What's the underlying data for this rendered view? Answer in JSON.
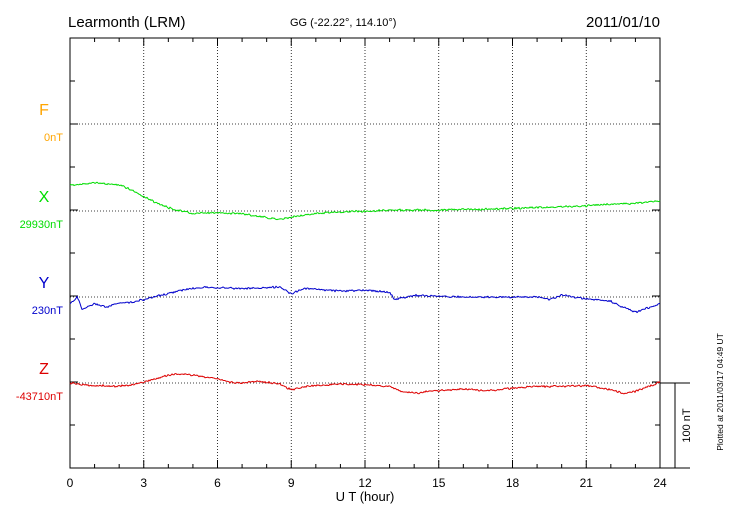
{
  "header": {
    "station": "Learmonth (LRM)",
    "coords": "GG (-22.22°, 114.10°)",
    "date": "2011/01/10"
  },
  "footer": {
    "plotted_at": "Plotted at 2011/03/17 04:49 UT"
  },
  "chart_data": {
    "type": "line",
    "title": "Learmonth (LRM)",
    "xlabel": "U T (hour)",
    "xlim": [
      0,
      24
    ],
    "x_ticks": [
      "0",
      "3",
      "6",
      "9",
      "12",
      "15",
      "18",
      "21",
      "24"
    ],
    "grid": true,
    "scale_bar_label": "100 nT",
    "scale_bar_nT": 100,
    "series": [
      {
        "name": "F",
        "baseline": "0nT",
        "color": "#ffa500",
        "x": [],
        "y": []
      },
      {
        "name": "X",
        "baseline": "29930nT",
        "color": "#00dd00",
        "x": [
          0,
          0.5,
          1,
          1.5,
          2,
          2.5,
          3,
          3.5,
          4,
          4.5,
          5,
          6,
          7,
          8,
          8.5,
          9,
          10,
          11,
          12,
          13,
          14,
          15,
          16,
          17,
          18,
          19,
          20,
          21,
          22,
          23,
          24
        ],
        "y": [
          30,
          32,
          33,
          32,
          31,
          25,
          17,
          10,
          4,
          0,
          -3,
          -2,
          -3,
          -8,
          -10,
          -7,
          -3,
          -1,
          0,
          1,
          1,
          1,
          2,
          2,
          3,
          4,
          5,
          6,
          8,
          9,
          12
        ]
      },
      {
        "name": "Y",
        "baseline": "230nT",
        "color": "#0000cc",
        "x": [
          0,
          0.3,
          0.5,
          1,
          1.5,
          2,
          2.5,
          3,
          3.5,
          4,
          4.5,
          5,
          5.5,
          6,
          7,
          8,
          8.5,
          9,
          9.5,
          10,
          11,
          12,
          13,
          13.2,
          14,
          15,
          16,
          17,
          18,
          19,
          19.5,
          20,
          21,
          22,
          22.5,
          23,
          24
        ],
        "y": [
          -8,
          0,
          -15,
          -8,
          -12,
          -7,
          -6,
          -3,
          1,
          4,
          8,
          10,
          12,
          11,
          10,
          11,
          12,
          4,
          10,
          9,
          7,
          8,
          6,
          -3,
          2,
          1,
          0,
          0,
          0,
          0,
          -3,
          2,
          -2,
          -5,
          -12,
          -18,
          -8
        ]
      },
      {
        "name": "Z",
        "baseline": "-43710nT",
        "color": "#dd0000",
        "x": [
          0,
          0.5,
          1,
          2,
          2.5,
          3,
          3.5,
          4,
          4.5,
          5,
          5.5,
          6,
          6.5,
          7,
          7.5,
          8,
          8.5,
          9,
          9.5,
          10,
          11,
          12,
          13,
          13.5,
          14,
          15,
          16,
          17,
          18,
          19,
          20,
          21,
          22,
          22.5,
          23,
          24
        ],
        "y": [
          0,
          -2,
          -3,
          -4,
          -2,
          1,
          5,
          9,
          11,
          9,
          7,
          5,
          1,
          0,
          2,
          1,
          -1,
          -8,
          -4,
          -3,
          -1,
          -2,
          -4,
          -10,
          -12,
          -9,
          -7,
          -9,
          -6,
          -4,
          -4,
          -3,
          -8,
          -12,
          -10,
          1
        ]
      }
    ]
  }
}
